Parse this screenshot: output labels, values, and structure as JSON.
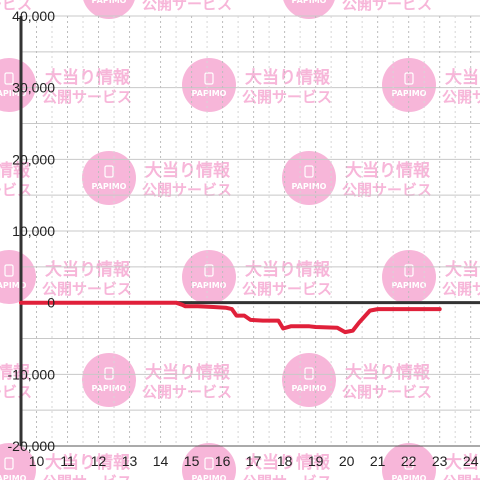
{
  "chart_data": {
    "type": "line",
    "title": "",
    "xlabel": "",
    "ylabel": "",
    "xlim": [
      9.5,
      24.3
    ],
    "ylim": [
      -20000,
      40000
    ],
    "x_ticks": [
      "10",
      "11",
      "12",
      "13",
      "14",
      "15",
      "16",
      "17",
      "18",
      "19",
      "20",
      "21",
      "22",
      "23",
      "24"
    ],
    "y_ticks": [
      "40,000",
      "30,000",
      "20,000",
      "10,000",
      "0",
      "-10,000",
      "-20,000"
    ],
    "grid": true,
    "series": [
      {
        "color": "#e0203a",
        "points": [
          [
            9.5,
            0
          ],
          [
            14.5,
            0
          ],
          [
            14.7,
            -300
          ],
          [
            14.8,
            -500
          ],
          [
            15.2,
            -500
          ],
          [
            15.7,
            -600
          ],
          [
            16.1,
            -700
          ],
          [
            16.3,
            -900
          ],
          [
            16.45,
            -1800
          ],
          [
            16.7,
            -1800
          ],
          [
            16.9,
            -2400
          ],
          [
            17.3,
            -2500
          ],
          [
            17.8,
            -2500
          ],
          [
            17.95,
            -3600
          ],
          [
            18.2,
            -3300
          ],
          [
            18.8,
            -3300
          ],
          [
            19.0,
            -3400
          ],
          [
            19.7,
            -3500
          ],
          [
            19.95,
            -4100
          ],
          [
            20.2,
            -3900
          ],
          [
            20.4,
            -2800
          ],
          [
            20.75,
            -1100
          ],
          [
            21.0,
            -900
          ],
          [
            23.0,
            -900
          ]
        ]
      }
    ]
  },
  "watermark": {
    "logo_text": "PAPIMO",
    "line1": "大当り情報",
    "line2": "公開サービス",
    "color": "#f7b6d9"
  }
}
